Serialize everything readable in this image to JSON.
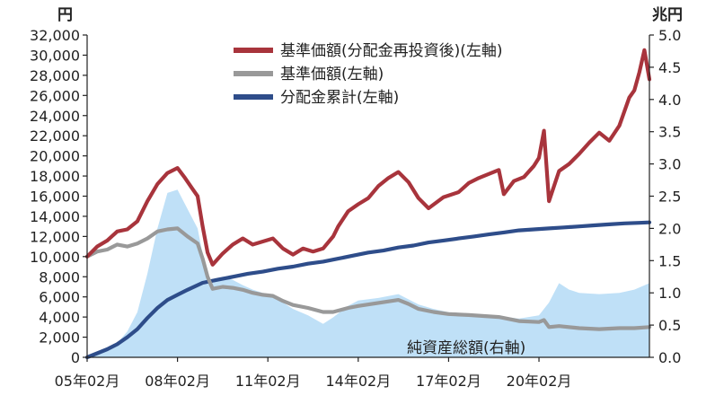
{
  "chart_data": {
    "type": "line",
    "title": "",
    "left_axis": {
      "unit": "円",
      "ylim": [
        0,
        32000
      ],
      "ticks": [
        "0",
        "2,000",
        "4,000",
        "6,000",
        "8,000",
        "10,000",
        "12,000",
        "14,000",
        "16,000",
        "18,000",
        "20,000",
        "22,000",
        "24,000",
        "26,000",
        "28,000",
        "30,000",
        "32,000"
      ]
    },
    "right_axis": {
      "unit": "兆円",
      "ylim": [
        0,
        5.0
      ],
      "ticks": [
        "0.0",
        "0.5",
        "1.0",
        "1.5",
        "2.0",
        "2.5",
        "3.0",
        "3.5",
        "4.0",
        "4.5",
        "5.0"
      ]
    },
    "x_axis": {
      "range": [
        "2005-02",
        "2023-10"
      ],
      "ticks": [
        "05年02月",
        "08年02月",
        "11年02月",
        "14年02月",
        "17年02月",
        "20年02月"
      ]
    },
    "legend_position": "top-center",
    "series": [
      {
        "name": "基準価額(分配金再投資後)(左軸)",
        "axis": "left",
        "color": "#a8343c",
        "points": [
          [
            "2005-02",
            10000
          ],
          [
            "2005-06",
            11000
          ],
          [
            "2005-10",
            11600
          ],
          [
            "2006-02",
            12500
          ],
          [
            "2006-06",
            12700
          ],
          [
            "2006-10",
            13500
          ],
          [
            "2007-02",
            15500
          ],
          [
            "2007-06",
            17200
          ],
          [
            "2007-10",
            18300
          ],
          [
            "2008-02",
            18800
          ],
          [
            "2008-05",
            17800
          ],
          [
            "2008-08",
            16700
          ],
          [
            "2008-10",
            16000
          ],
          [
            "2008-12",
            13000
          ],
          [
            "2009-02",
            10400
          ],
          [
            "2009-04",
            9200
          ],
          [
            "2009-08",
            10300
          ],
          [
            "2009-12",
            11200
          ],
          [
            "2010-04",
            11800
          ],
          [
            "2010-08",
            11200
          ],
          [
            "2010-12",
            11500
          ],
          [
            "2011-04",
            11800
          ],
          [
            "2011-08",
            10800
          ],
          [
            "2011-12",
            10200
          ],
          [
            "2012-04",
            10800
          ],
          [
            "2012-08",
            10500
          ],
          [
            "2012-12",
            10800
          ],
          [
            "2013-04",
            12000
          ],
          [
            "2013-06",
            13000
          ],
          [
            "2013-10",
            14500
          ],
          [
            "2014-02",
            15200
          ],
          [
            "2014-06",
            15800
          ],
          [
            "2014-10",
            17000
          ],
          [
            "2015-02",
            17800
          ],
          [
            "2015-06",
            18400
          ],
          [
            "2015-10",
            17400
          ],
          [
            "2016-02",
            15800
          ],
          [
            "2016-06",
            14800
          ],
          [
            "2016-12",
            15900
          ],
          [
            "2017-06",
            16400
          ],
          [
            "2017-10",
            17300
          ],
          [
            "2018-02",
            17800
          ],
          [
            "2018-06",
            18200
          ],
          [
            "2018-10",
            18600
          ],
          [
            "2018-12",
            16200
          ],
          [
            "2019-04",
            17500
          ],
          [
            "2019-08",
            17900
          ],
          [
            "2019-12",
            19000
          ],
          [
            "2020-02",
            19800
          ],
          [
            "2020-04",
            22500
          ],
          [
            "2020-06",
            15500
          ],
          [
            "2020-10",
            18500
          ],
          [
            "2021-02",
            19200
          ],
          [
            "2021-06",
            20200
          ],
          [
            "2021-10",
            21300
          ],
          [
            "2022-02",
            22300
          ],
          [
            "2022-06",
            21500
          ],
          [
            "2022-10",
            23000
          ],
          [
            "2023-02",
            25800
          ],
          [
            "2023-04",
            26500
          ],
          [
            "2023-06",
            28300
          ],
          [
            "2023-08",
            30500
          ],
          [
            "2023-10",
            27600
          ]
        ]
      },
      {
        "name": "基準価額(左軸)",
        "axis": "left",
        "color": "#999999",
        "points": [
          [
            "2005-02",
            10000
          ],
          [
            "2005-06",
            10500
          ],
          [
            "2005-10",
            10700
          ],
          [
            "2006-02",
            11200
          ],
          [
            "2006-06",
            11000
          ],
          [
            "2006-10",
            11300
          ],
          [
            "2007-02",
            11800
          ],
          [
            "2007-06",
            12500
          ],
          [
            "2007-10",
            12700
          ],
          [
            "2008-02",
            12800
          ],
          [
            "2008-06",
            12000
          ],
          [
            "2008-10",
            11300
          ],
          [
            "2008-12",
            9800
          ],
          [
            "2009-02",
            8000
          ],
          [
            "2009-04",
            6800
          ],
          [
            "2009-08",
            7000
          ],
          [
            "2009-12",
            6900
          ],
          [
            "2010-04",
            6700
          ],
          [
            "2010-08",
            6400
          ],
          [
            "2010-12",
            6200
          ],
          [
            "2011-04",
            6100
          ],
          [
            "2011-08",
            5600
          ],
          [
            "2011-12",
            5200
          ],
          [
            "2012-06",
            4900
          ],
          [
            "2012-12",
            4500
          ],
          [
            "2013-04",
            4500
          ],
          [
            "2013-10",
            4900
          ],
          [
            "2014-02",
            5100
          ],
          [
            "2014-10",
            5400
          ],
          [
            "2015-06",
            5700
          ],
          [
            "2015-10",
            5300
          ],
          [
            "2016-02",
            4800
          ],
          [
            "2016-08",
            4500
          ],
          [
            "2017-02",
            4300
          ],
          [
            "2017-10",
            4200
          ],
          [
            "2018-04",
            4100
          ],
          [
            "2018-10",
            4000
          ],
          [
            "2019-06",
            3600
          ],
          [
            "2020-02",
            3500
          ],
          [
            "2020-04",
            3700
          ],
          [
            "2020-06",
            3000
          ],
          [
            "2020-10",
            3100
          ],
          [
            "2021-06",
            2900
          ],
          [
            "2022-02",
            2800
          ],
          [
            "2022-10",
            2900
          ],
          [
            "2023-04",
            2900
          ],
          [
            "2023-10",
            3000
          ]
        ]
      },
      {
        "name": "分配金累計(左軸)",
        "axis": "left",
        "color": "#2e4d8a",
        "points": [
          [
            "2005-02",
            0
          ],
          [
            "2005-06",
            400
          ],
          [
            "2005-10",
            800
          ],
          [
            "2006-02",
            1300
          ],
          [
            "2006-06",
            2000
          ],
          [
            "2006-10",
            2800
          ],
          [
            "2007-02",
            3900
          ],
          [
            "2007-06",
            4900
          ],
          [
            "2007-10",
            5700
          ],
          [
            "2008-02",
            6200
          ],
          [
            "2008-06",
            6700
          ],
          [
            "2008-12",
            7400
          ],
          [
            "2009-06",
            7700
          ],
          [
            "2009-12",
            8000
          ],
          [
            "2010-06",
            8300
          ],
          [
            "2010-12",
            8500
          ],
          [
            "2011-06",
            8800
          ],
          [
            "2011-12",
            9000
          ],
          [
            "2012-06",
            9300
          ],
          [
            "2012-12",
            9500
          ],
          [
            "2013-06",
            9800
          ],
          [
            "2013-12",
            10100
          ],
          [
            "2014-06",
            10400
          ],
          [
            "2014-12",
            10600
          ],
          [
            "2015-06",
            10900
          ],
          [
            "2015-12",
            11100
          ],
          [
            "2016-06",
            11400
          ],
          [
            "2016-12",
            11600
          ],
          [
            "2017-06",
            11800
          ],
          [
            "2017-12",
            12000
          ],
          [
            "2018-06",
            12200
          ],
          [
            "2018-12",
            12400
          ],
          [
            "2019-06",
            12600
          ],
          [
            "2019-12",
            12700
          ],
          [
            "2020-06",
            12800
          ],
          [
            "2020-12",
            12900
          ],
          [
            "2021-06",
            13000
          ],
          [
            "2021-12",
            13100
          ],
          [
            "2022-06",
            13200
          ],
          [
            "2022-12",
            13300
          ],
          [
            "2023-06",
            13350
          ],
          [
            "2023-10",
            13400
          ]
        ]
      },
      {
        "name": "純資産総額(右軸)",
        "axis": "right",
        "type": "area",
        "color": "#bfe0f7",
        "points": [
          [
            "2005-02",
            0
          ],
          [
            "2005-06",
            0.04
          ],
          [
            "2005-10",
            0.1
          ],
          [
            "2006-02",
            0.22
          ],
          [
            "2006-06",
            0.4
          ],
          [
            "2006-10",
            0.7
          ],
          [
            "2007-02",
            1.3
          ],
          [
            "2007-06",
            2.0
          ],
          [
            "2007-10",
            2.55
          ],
          [
            "2008-02",
            2.6
          ],
          [
            "2008-06",
            2.3
          ],
          [
            "2008-10",
            2.0
          ],
          [
            "2008-12",
            1.6
          ],
          [
            "2009-02",
            1.3
          ],
          [
            "2009-04",
            1.15
          ],
          [
            "2009-08",
            1.25
          ],
          [
            "2009-12",
            1.2
          ],
          [
            "2010-04",
            1.12
          ],
          [
            "2010-08",
            1.05
          ],
          [
            "2010-12",
            1.0
          ],
          [
            "2011-04",
            0.95
          ],
          [
            "2011-08",
            0.85
          ],
          [
            "2011-12",
            0.75
          ],
          [
            "2012-06",
            0.65
          ],
          [
            "2012-12",
            0.52
          ],
          [
            "2013-04",
            0.62
          ],
          [
            "2013-10",
            0.8
          ],
          [
            "2014-02",
            0.88
          ],
          [
            "2014-10",
            0.92
          ],
          [
            "2015-06",
            0.98
          ],
          [
            "2015-10",
            0.9
          ],
          [
            "2016-02",
            0.82
          ],
          [
            "2016-08",
            0.75
          ],
          [
            "2017-02",
            0.7
          ],
          [
            "2017-10",
            0.68
          ],
          [
            "2018-04",
            0.66
          ],
          [
            "2018-10",
            0.64
          ],
          [
            "2019-06",
            0.6
          ],
          [
            "2020-02",
            0.65
          ],
          [
            "2020-06",
            0.85
          ],
          [
            "2020-10",
            1.15
          ],
          [
            "2021-02",
            1.05
          ],
          [
            "2021-06",
            1.0
          ],
          [
            "2022-02",
            0.98
          ],
          [
            "2022-10",
            1.0
          ],
          [
            "2023-04",
            1.05
          ],
          [
            "2023-10",
            1.15
          ]
        ]
      }
    ],
    "annotation": "純資産総額(右軸)"
  }
}
